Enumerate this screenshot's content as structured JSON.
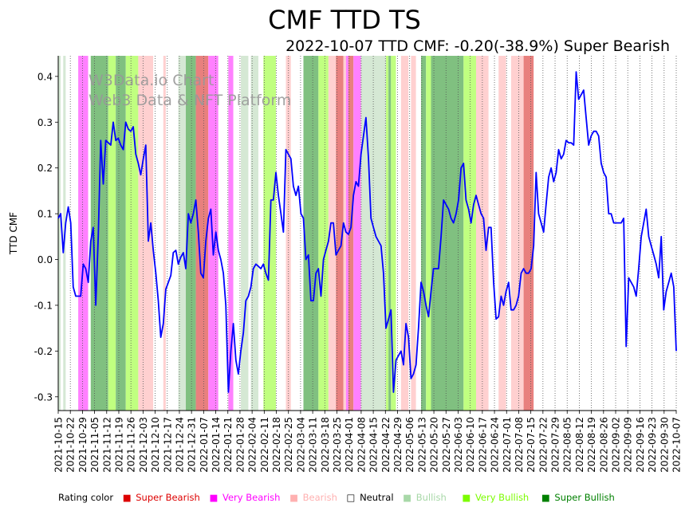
{
  "chart_data": {
    "type": "line",
    "title": "CMF TTD TS",
    "subtitle": "2022-10-07 TTD CMF: -0.20(-38.9%) Super Bearish",
    "ylabel": "TTD CMF",
    "xlabel": "",
    "ylim": [
      -0.33,
      0.445
    ],
    "yticks": [
      -0.3,
      -0.2,
      -0.1,
      0.0,
      0.1,
      0.2,
      0.3,
      0.4
    ],
    "watermark": [
      "W3Data.io Chart",
      "Web3 Data & NFT Platform"
    ],
    "x_tick_labels": [
      "2021-10-15",
      "2021-10-22",
      "2021-10-29",
      "2021-11-05",
      "2021-11-12",
      "2021-11-19",
      "2021-11-26",
      "2021-12-03",
      "2021-12-10",
      "2021-12-17",
      "2021-12-24",
      "2021-12-31",
      "2022-01-07",
      "2022-01-14",
      "2022-01-21",
      "2022-01-28",
      "2022-02-04",
      "2022-02-11",
      "2022-02-18",
      "2022-02-25",
      "2022-03-04",
      "2022-03-11",
      "2022-03-18",
      "2022-03-25",
      "2022-04-01",
      "2022-04-08",
      "2022-04-15",
      "2022-04-22",
      "2022-04-29",
      "2022-05-06",
      "2022-05-13",
      "2022-05-20",
      "2022-05-27",
      "2022-06-03",
      "2022-06-10",
      "2022-06-17",
      "2022-06-24",
      "2022-07-01",
      "2022-07-08",
      "2022-07-15",
      "2022-07-22",
      "2022-07-29",
      "2022-08-05",
      "2022-08-12",
      "2022-08-19",
      "2022-08-26",
      "2022-09-02",
      "2022-09-09",
      "2022-09-16",
      "2022-09-23",
      "2022-09-30",
      "2022-10-07"
    ],
    "rating_colors": {
      "SB": "#e8807e",
      "VB": "#ff80ff",
      "B": "#ffd0d0",
      "N": "#ffffff",
      "BU": "#d5e8d4",
      "VBU": "#c0ff80",
      "SBU": "#80c080"
    },
    "rating_segments": [
      [
        0,
        1,
        "BU"
      ],
      [
        1,
        2,
        "N"
      ],
      [
        2,
        3,
        "BU"
      ],
      [
        3,
        8,
        "N"
      ],
      [
        8,
        12,
        "VB"
      ],
      [
        12,
        13,
        "N"
      ],
      [
        13,
        20,
        "SBU"
      ],
      [
        20,
        23,
        "VBU"
      ],
      [
        23,
        27,
        "SBU"
      ],
      [
        27,
        32,
        "VBU"
      ],
      [
        32,
        38,
        "B"
      ],
      [
        38,
        42,
        "N"
      ],
      [
        42,
        43,
        "B"
      ],
      [
        43,
        48,
        "N"
      ],
      [
        48,
        51,
        "BU"
      ],
      [
        51,
        55,
        "SBU"
      ],
      [
        55,
        60,
        "SB"
      ],
      [
        60,
        64,
        "VB"
      ],
      [
        64,
        68,
        "N"
      ],
      [
        68,
        70,
        "VB"
      ],
      [
        70,
        73,
        "N"
      ],
      [
        73,
        76,
        "BU"
      ],
      [
        76,
        77,
        "N"
      ],
      [
        77,
        80,
        "BU"
      ],
      [
        80,
        82,
        "N"
      ],
      [
        82,
        87,
        "VBU"
      ],
      [
        87,
        91,
        "N"
      ],
      [
        91,
        93,
        "B"
      ],
      [
        93,
        98,
        "N"
      ],
      [
        98,
        104,
        "SBU"
      ],
      [
        104,
        108,
        "VBU"
      ],
      [
        108,
        111,
        "B"
      ],
      [
        111,
        114,
        "SB"
      ],
      [
        114,
        115,
        "B"
      ],
      [
        115,
        116,
        "VB"
      ],
      [
        116,
        118,
        "SB"
      ],
      [
        118,
        121,
        "VB"
      ],
      [
        121,
        131,
        "BU"
      ],
      [
        131,
        132,
        "VBU"
      ],
      [
        132,
        133,
        "SBU"
      ],
      [
        133,
        135,
        "VBU"
      ],
      [
        135,
        137,
        "N"
      ],
      [
        137,
        140,
        "B"
      ],
      [
        140,
        141,
        "N"
      ],
      [
        141,
        143,
        "B"
      ],
      [
        143,
        145,
        "N"
      ],
      [
        145,
        147,
        "SBU"
      ],
      [
        147,
        149,
        "VBU"
      ],
      [
        149,
        162,
        "SBU"
      ],
      [
        162,
        167,
        "VBU"
      ],
      [
        167,
        172,
        "B"
      ],
      [
        172,
        176,
        "N"
      ],
      [
        176,
        179,
        "B"
      ],
      [
        179,
        181,
        "N"
      ],
      [
        181,
        186,
        "B"
      ],
      [
        186,
        189,
        "SB"
      ],
      [
        189,
        190,
        "SB"
      ]
    ],
    "series": [
      {
        "name": "TTD CMF",
        "values": [
          0.09,
          0.1,
          0.015,
          0.08,
          0.115,
          0.08,
          -0.06,
          -0.08,
          -0.08,
          -0.08,
          -0.01,
          -0.02,
          -0.05,
          0.04,
          0.07,
          -0.1,
          0.05,
          0.26,
          0.165,
          0.26,
          0.255,
          0.25,
          0.3,
          0.26,
          0.265,
          0.25,
          0.24,
          0.3,
          0.285,
          0.28,
          0.29,
          0.23,
          0.21,
          0.185,
          0.22,
          0.25,
          0.04,
          0.08,
          0.02,
          -0.03,
          -0.09,
          -0.17,
          -0.14,
          -0.065,
          -0.05,
          -0.035,
          0.015,
          0.02,
          -0.01,
          0.005,
          0.015,
          -0.02,
          0.1,
          0.08,
          0.1,
          0.13,
          0.06,
          -0.03,
          -0.04,
          0.04,
          0.09,
          0.11,
          0.01,
          0.06,
          0.02,
          0.0,
          -0.03,
          -0.1,
          -0.29,
          -0.2,
          -0.14,
          -0.22,
          -0.25,
          -0.2,
          -0.16,
          -0.09,
          -0.08,
          -0.06,
          -0.02,
          -0.01,
          -0.015,
          -0.02,
          -0.01,
          -0.03,
          -0.045,
          0.13,
          0.13,
          0.19,
          0.14,
          0.1,
          0.06,
          0.24,
          0.23,
          0.22,
          0.16,
          0.14,
          0.16,
          0.1,
          0.09,
          0.0,
          0.01,
          -0.09,
          -0.09,
          -0.03,
          -0.02,
          -0.08,
          0.0,
          0.02,
          0.04,
          0.08,
          0.08,
          0.01,
          0.02,
          0.03,
          0.08,
          0.06,
          0.055,
          0.07,
          0.14,
          0.17,
          0.16,
          0.23,
          0.27,
          0.31,
          0.22,
          0.09,
          0.07,
          0.05,
          0.04,
          0.03,
          -0.03,
          -0.15,
          -0.13,
          -0.11,
          -0.29,
          -0.22,
          -0.21,
          -0.2,
          -0.23,
          -0.14,
          -0.17,
          -0.26,
          -0.25,
          -0.23,
          -0.15,
          -0.05,
          -0.07,
          -0.1,
          -0.125,
          -0.07,
          -0.02,
          -0.02,
          -0.02,
          0.05,
          0.13,
          0.12,
          0.11,
          0.09,
          0.08,
          0.1,
          0.13,
          0.2,
          0.21,
          0.13,
          0.11,
          0.08,
          0.12,
          0.14,
          0.12,
          0.1,
          0.09,
          0.02,
          0.07,
          0.07,
          -0.05,
          -0.13,
          -0.125,
          -0.08,
          -0.1,
          -0.07,
          -0.05,
          -0.11,
          -0.11,
          -0.1,
          -0.08,
          -0.03,
          -0.02,
          -0.03,
          -0.03,
          -0.02,
          0.03,
          0.19,
          0.1,
          0.08,
          0.06,
          0.12,
          0.18,
          0.2,
          0.17,
          0.19,
          0.24,
          0.22,
          0.23,
          0.26,
          0.255,
          0.255,
          0.25,
          0.41,
          0.35,
          0.36,
          0.37,
          0.31,
          0.25,
          0.27,
          0.28,
          0.28,
          0.27,
          0.21,
          0.19,
          0.18,
          0.1,
          0.1,
          0.08,
          0.08,
          0.08,
          0.08,
          0.09,
          -0.19,
          -0.04,
          -0.05,
          -0.06,
          -0.08,
          -0.02,
          0.05,
          0.08,
          0.11,
          0.05,
          0.03,
          0.01,
          -0.01,
          -0.04,
          0.05,
          -0.11,
          -0.07,
          -0.05,
          -0.03,
          -0.06,
          -0.2
        ]
      }
    ]
  },
  "legend": {
    "prefix": "Rating color",
    "items": [
      {
        "marker": "■",
        "label": "Super Bearish",
        "color": "#dd0000"
      },
      {
        "marker": "■",
        "label": "Very Bearish",
        "color": "#ff00ff"
      },
      {
        "marker": "■",
        "label": "Bearish",
        "color": "#ffb0b0"
      },
      {
        "marker": "□",
        "label": "Neutral",
        "color": "#000000"
      },
      {
        "marker": "■",
        "label": "Bullish",
        "color": "#a8d8a8"
      },
      {
        "marker": "■",
        "label": "Very Bullish",
        "color": "#7cfc00"
      },
      {
        "marker": "■",
        "label": "Super Bullish",
        "color": "#008000"
      }
    ]
  }
}
